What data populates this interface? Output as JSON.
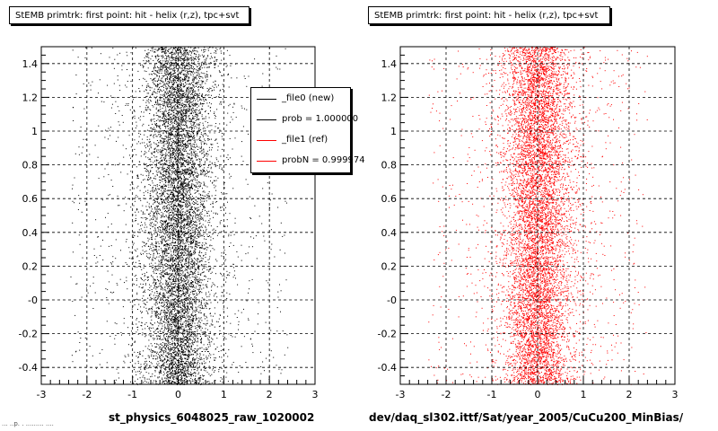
{
  "titles": {
    "left": "StEMB primtrk: first point: hit - helix (r,z), tpc+svt",
    "right": "StEMB primtrk: first point: hit - helix (r,z), tpc+svt"
  },
  "captions": {
    "left": "st_physics_6048025_raw_1020002",
    "right": "dev/daq_sl302.ittf/Sat/year_2005/CuCu200_MinBias/"
  },
  "legend": {
    "entries": [
      {
        "label": "_file0 (new)",
        "color": "#000000"
      },
      {
        "label": "prob = 1.000000",
        "color": "#000000"
      },
      {
        "label": "_file1 (ref)",
        "color": "#ff0000"
      },
      {
        "label": "probN = 0.999974",
        "color": "#ff0000"
      }
    ]
  },
  "stamp": "... ..p. . ......... ....",
  "chart_data": [
    {
      "type": "scatter",
      "series": [
        {
          "name": "_file0 (new)",
          "color": "#000000"
        }
      ],
      "xlim": [
        -3,
        3
      ],
      "ylim": [
        -0.5,
        1.5
      ],
      "xticks": [
        -3,
        -2,
        -1,
        0,
        1,
        2,
        3
      ],
      "xtick_labels": [
        "-3",
        "-2",
        "-1",
        "0",
        "1",
        "2",
        "3"
      ],
      "yticks": [
        -0.4,
        -0.2,
        0,
        0.2,
        0.4,
        0.6,
        0.8,
        1,
        1.2,
        1.4
      ],
      "ytick_labels": [
        "-0.4",
        "-0.2",
        "-0",
        "0.2",
        "0.4",
        "0.6",
        "0.8",
        "1",
        "1.2",
        "1.4"
      ],
      "grid": true,
      "distribution": {
        "x_center": 0.0,
        "x_sigma": 0.32
      }
    },
    {
      "type": "scatter",
      "series": [
        {
          "name": "_file1 (ref)",
          "color": "#ff0000"
        }
      ],
      "xlim": [
        -3,
        3
      ],
      "ylim": [
        -0.5,
        1.5
      ],
      "xticks": [
        -3,
        -2,
        -1,
        0,
        1,
        2,
        3
      ],
      "xtick_labels": [
        "-3",
        "-2",
        "-1",
        "0",
        "1",
        "2",
        "3"
      ],
      "yticks": [
        -0.4,
        -0.2,
        0,
        0.2,
        0.4,
        0.6,
        0.8,
        1,
        1.2,
        1.4
      ],
      "ytick_labels": [
        "-0.4",
        "-0.2",
        "-0",
        "0.2",
        "0.4",
        "0.6",
        "0.8",
        "1",
        "1.2",
        "1.4"
      ],
      "grid": true,
      "distribution": {
        "x_center": 0.0,
        "x_sigma": 0.32
      }
    }
  ]
}
